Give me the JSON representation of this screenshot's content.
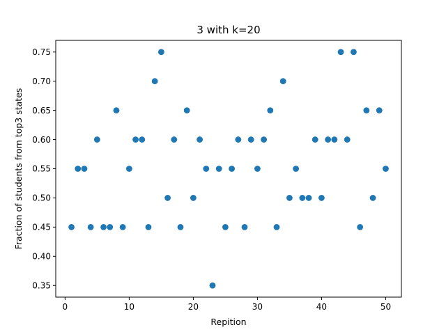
{
  "chart_data": {
    "type": "scatter",
    "title": "3 with k=20",
    "xlabel": "Repition",
    "ylabel": "Fraction of students from top3 states",
    "xlim": [
      -1.45,
      52.45
    ],
    "ylim": [
      0.33,
      0.77
    ],
    "xticks": [
      0,
      10,
      20,
      30,
      40,
      50
    ],
    "yticks": [
      0.35,
      0.4,
      0.45,
      0.5,
      0.55,
      0.6,
      0.65,
      0.7,
      0.75
    ],
    "xtick_labels": [
      "0",
      "10",
      "20",
      "30",
      "40",
      "50"
    ],
    "ytick_labels": [
      "0.35",
      "0.40",
      "0.45",
      "0.50",
      "0.55",
      "0.60",
      "0.65",
      "0.70",
      "0.75"
    ],
    "grid": false,
    "marker_color": "#1f77b4",
    "x": [
      1,
      2,
      3,
      4,
      5,
      6,
      7,
      8,
      9,
      10,
      11,
      12,
      13,
      14,
      15,
      16,
      17,
      18,
      19,
      20,
      21,
      22,
      23,
      24,
      25,
      26,
      27,
      28,
      29,
      30,
      31,
      32,
      33,
      34,
      35,
      36,
      37,
      38,
      39,
      40,
      41,
      42,
      43,
      44,
      45,
      46,
      47,
      48,
      49,
      50
    ],
    "y": [
      0.45,
      0.55,
      0.55,
      0.45,
      0.6,
      0.45,
      0.45,
      0.65,
      0.45,
      0.55,
      0.6,
      0.6,
      0.45,
      0.7,
      0.75,
      0.5,
      0.6,
      0.45,
      0.65,
      0.5,
      0.6,
      0.55,
      0.35,
      0.55,
      0.45,
      0.55,
      0.6,
      0.45,
      0.6,
      0.55,
      0.6,
      0.65,
      0.45,
      0.7,
      0.5,
      0.55,
      0.5,
      0.5,
      0.6,
      0.5,
      0.6,
      0.6,
      0.75,
      0.6,
      0.75,
      0.45,
      0.65,
      0.5,
      0.65,
      0.55
    ]
  }
}
